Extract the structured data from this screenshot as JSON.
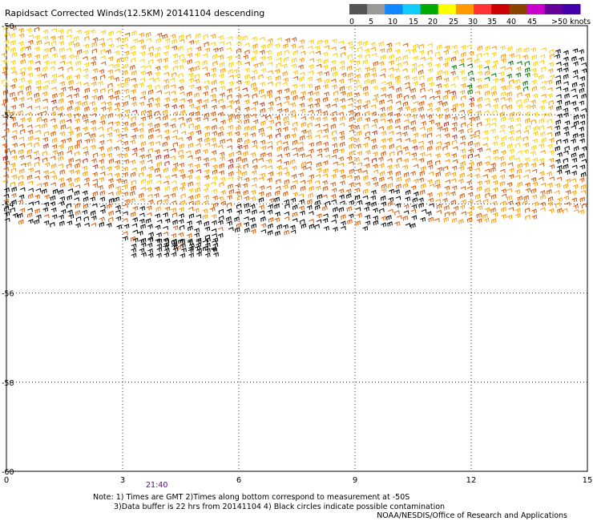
{
  "title": "Rapidsact Corrected Winds(12.5KM) 20141104 descending",
  "legend": {
    "labels": [
      "0",
      "5",
      "10",
      "15",
      "20",
      "25",
      "30",
      "35",
      "40",
      "45",
      ">50 knots"
    ],
    "colors": [
      "#555555",
      "#999999",
      "#1188ff",
      "#11ccff",
      "#00aa00",
      "#ffff00",
      "#ff9900",
      "#ff3333",
      "#cc0000",
      "#884400",
      "#cc00cc",
      "#660099",
      "#4400aa"
    ]
  },
  "axes": {
    "x_ticks": [
      "0",
      "3",
      "6",
      "9",
      "12",
      "15"
    ],
    "y_ticks": [
      "-50",
      "-52",
      "-54",
      "-56",
      "-58",
      "-60"
    ],
    "x_range": [
      0,
      15
    ],
    "y_range": [
      -50,
      -60
    ],
    "grid": "dotted"
  },
  "time_label": "21:40",
  "notes": [
    "Note: 1) Times are GMT 2)Times along bottom correspond to measurement at -50S",
    "3)Data buffer is 22 hrs from 20141104 4) Black circles indicate possible contamination"
  ],
  "credit": "NOAA/NESDIS/Office of Research and Applications",
  "wind_colors": {
    "calm": "#000000",
    "moderate": "#ffcc00",
    "strong": "#ff9900",
    "gale": "#dd5500",
    "storm": "#cc2222",
    "light": "#007700",
    "extreme": "#cc00cc"
  }
}
